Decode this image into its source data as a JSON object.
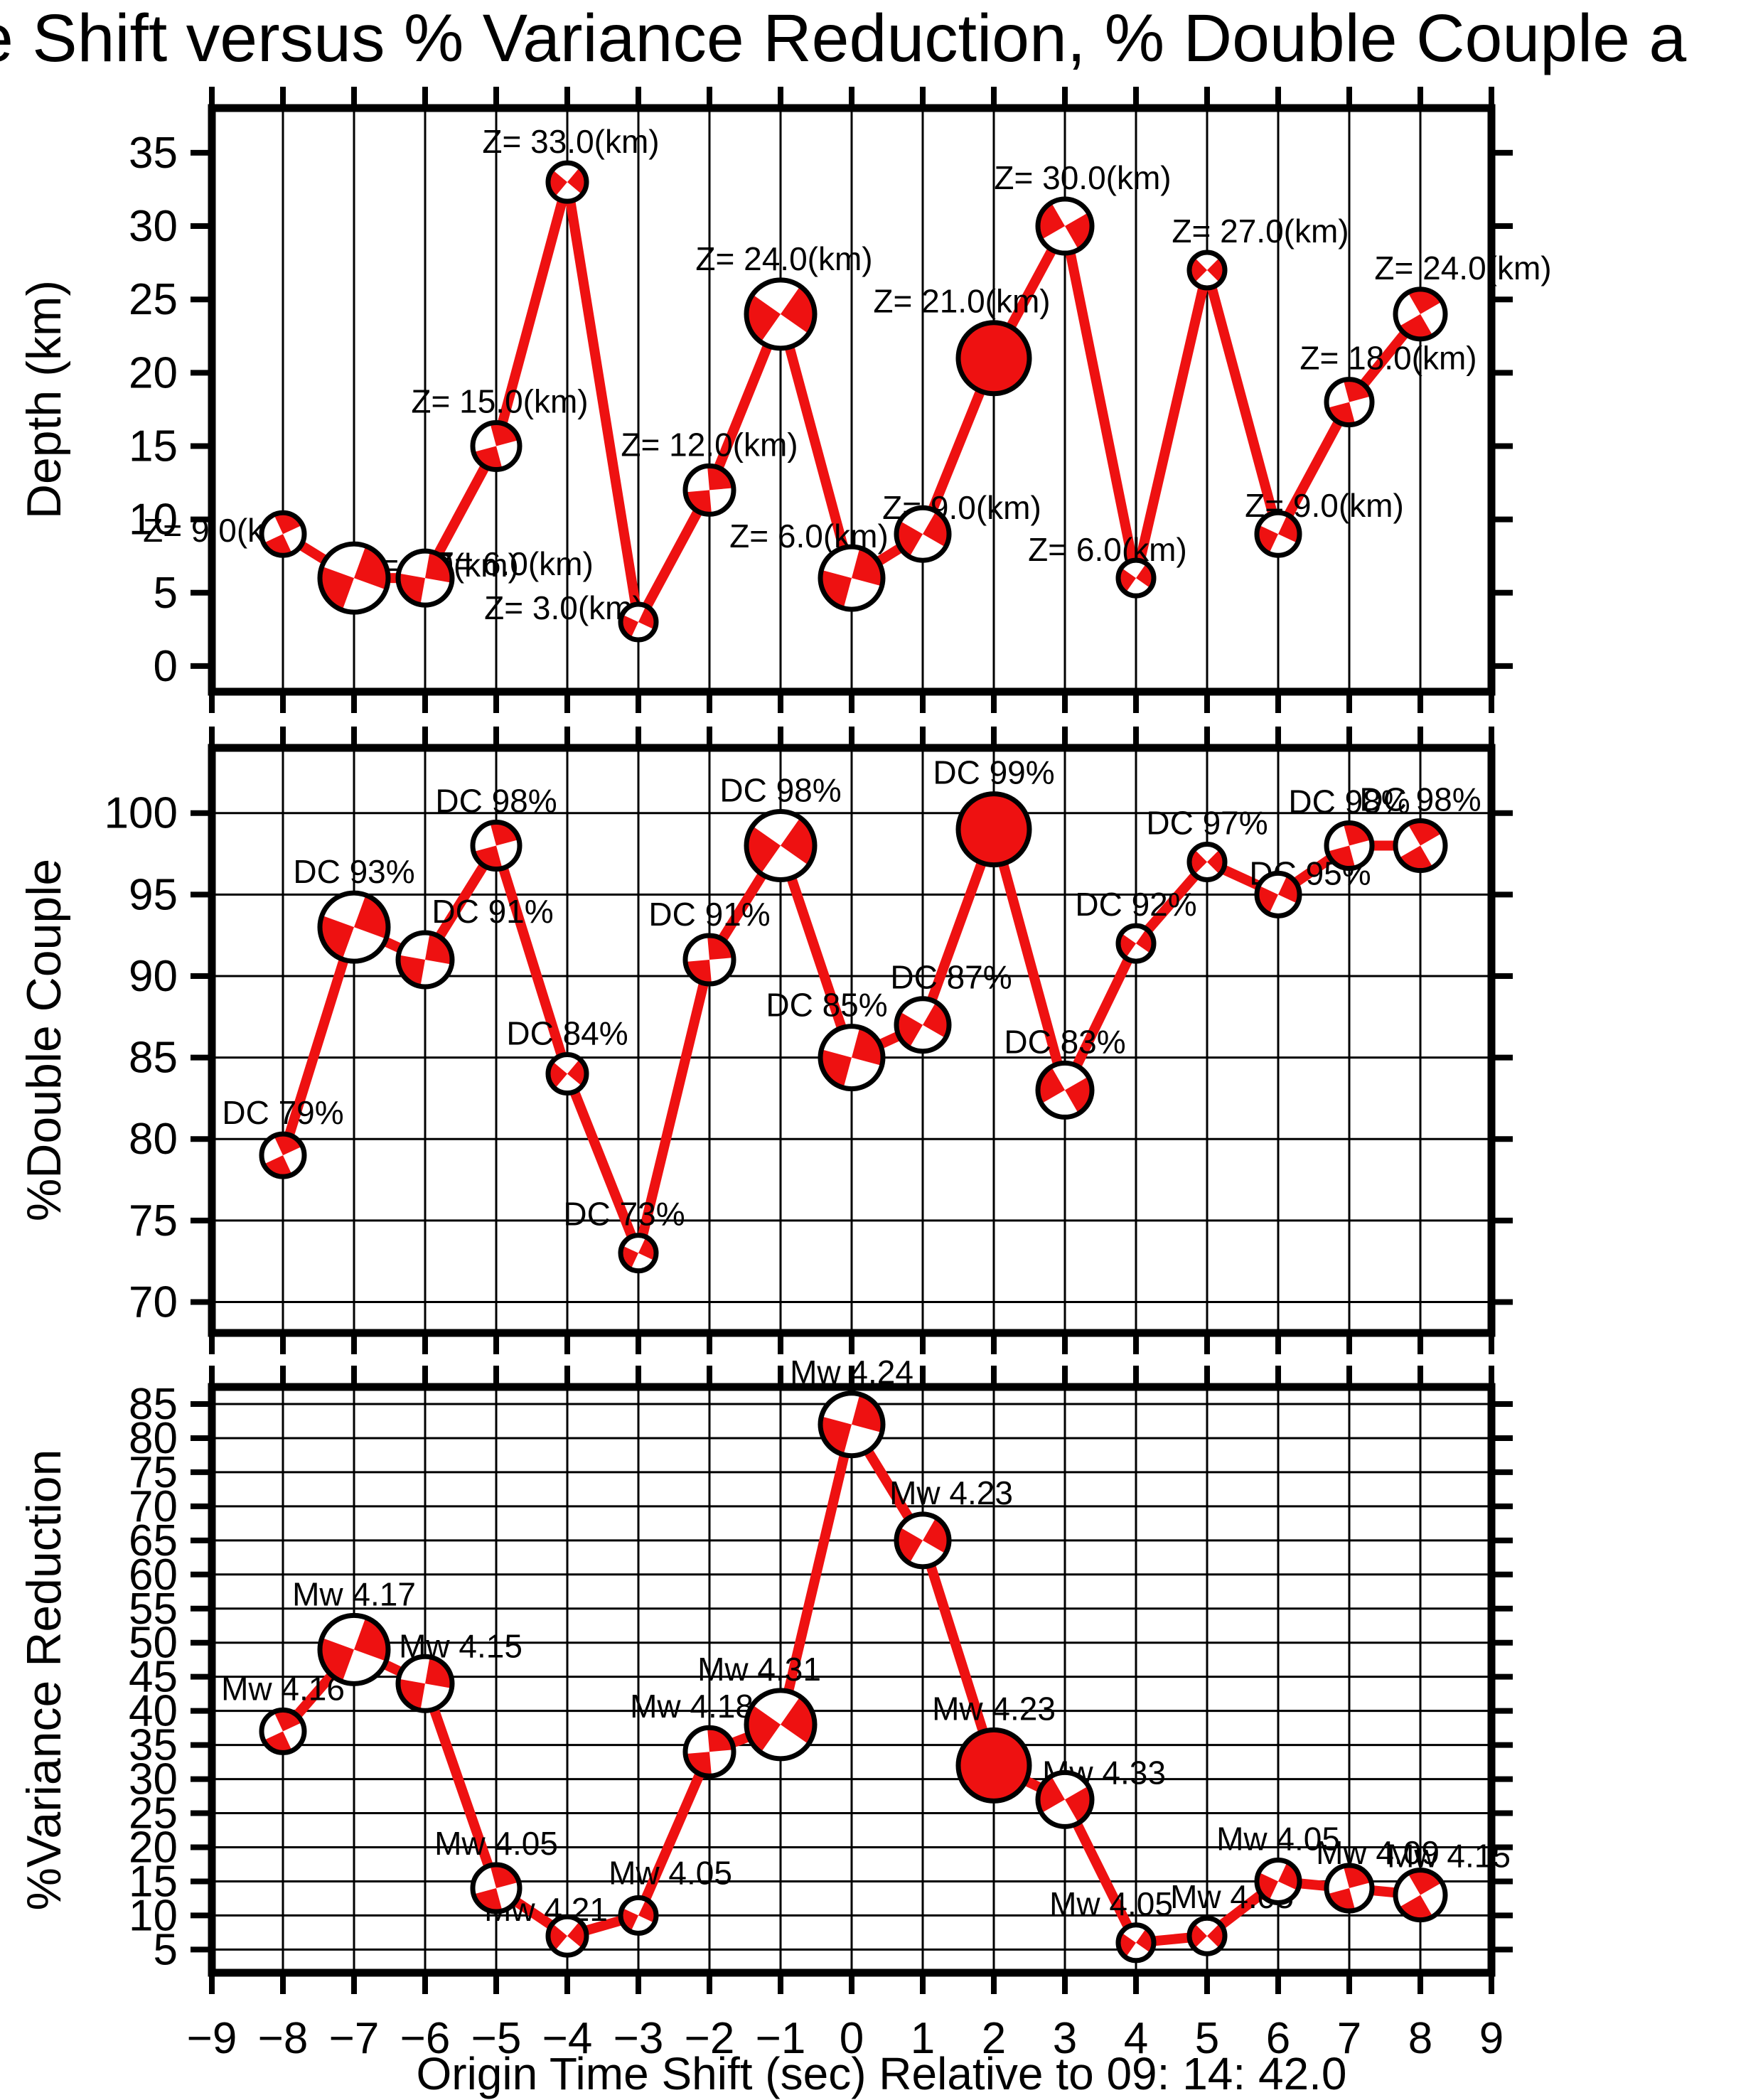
{
  "title": "e Shift versus % Variance Reduction, % Double Couple a",
  "x_axis": {
    "label": "Origin Time Shift (sec) Relative to 09: 14: 42.0",
    "ticks": [
      -9,
      -8,
      -7,
      -6,
      -5,
      -4,
      -3,
      -2,
      -1,
      0,
      1,
      2,
      3,
      4,
      5,
      6,
      7,
      8,
      9
    ],
    "range": [
      -9,
      9
    ]
  },
  "colors": {
    "line": "#ee1111",
    "ball_red": "#ee1111",
    "ball_white": "#ffffff",
    "ink": "#000000",
    "background": "#ffffff"
  },
  "markers": {
    "radius": [
      30,
      48,
      38,
      33,
      27,
      25,
      34,
      48,
      44,
      37,
      50,
      38,
      25,
      25,
      30,
      32,
      35
    ],
    "rotation_deg": [
      -25,
      20,
      10,
      -15,
      40,
      25,
      -5,
      35,
      15,
      30,
      0,
      60,
      35,
      45,
      25,
      -15,
      -30
    ],
    "solid_red_index": 10,
    "style": "double-couple focal mechanism beachball"
  },
  "chart_data": [
    {
      "type": "line",
      "panel": "depth",
      "ylabel": "Depth (km)",
      "yticks": [
        0,
        5,
        10,
        15,
        20,
        25,
        30,
        35
      ],
      "ylim": [
        -1.75,
        38.05
      ],
      "grid": {
        "vertical": true,
        "horizontal": false
      },
      "x": [
        -8,
        -7,
        -6,
        -5,
        -4,
        -3,
        -2,
        -1,
        0,
        1,
        2,
        3,
        4,
        5,
        6,
        7,
        8
      ],
      "values": [
        9,
        6,
        6,
        15,
        33,
        3,
        12,
        24,
        6,
        9,
        21,
        30,
        6,
        27,
        9,
        18,
        24
      ],
      "point_labels": [
        "Z= 9.0(km)",
        "Z= 6.0(km)",
        "Z= 6.0(km)",
        "Z= 15.0(km)",
        "Z= 33.0(km)",
        "Z= 3.0(km)",
        "Z= 12.0(km)",
        "Z= 24.0(km)",
        "Z= 6.0(km)",
        "Z= 9.0(km)",
        "Z= 21.0(km)",
        "Z= 30.0(km)",
        "Z= 6.0(km)",
        "Z= 27.0(km)",
        "Z= 9.0(km)",
        "Z= 18.0(km)",
        "Z= 24.0(km)"
      ],
      "label_dx": [
        -85,
        120,
        125,
        5,
        5,
        -105,
        0,
        5,
        -60,
        55,
        -45,
        25,
        -40,
        75,
        65,
        55,
        60
      ],
      "label_dy": [
        55,
        60,
        48,
        0,
        0,
        35,
        0,
        0,
        15,
        30,
        0,
        0,
        15,
        0,
        20,
        0,
        0
      ]
    },
    {
      "type": "line",
      "panel": "double_couple",
      "ylabel": "%Double Couple",
      "yticks": [
        70,
        75,
        80,
        85,
        90,
        95,
        100
      ],
      "ylim": [
        68.1,
        104.0
      ],
      "grid": {
        "vertical": true,
        "horizontal": true
      },
      "x": [
        -8,
        -7,
        -6,
        -5,
        -4,
        -3,
        -2,
        -1,
        0,
        1,
        2,
        3,
        4,
        5,
        6,
        7,
        8
      ],
      "values": [
        79,
        93,
        91,
        98,
        84,
        73,
        91,
        98,
        85,
        87,
        99,
        83,
        92,
        97,
        95,
        98,
        98
      ],
      "point_labels": [
        "DC 79%",
        "DC 93%",
        "DC 91%",
        "DC 98%",
        "DC 84%",
        "DC 73%",
        "DC 91%",
        "DC 98%",
        "DC 85%",
        "DC 87%",
        "DC 99%",
        "DC 83%",
        "DC 92%",
        "DC 97%",
        "DC 95%",
        "DC 98%",
        "DC 98%"
      ],
      "label_dx": [
        0,
        0,
        95,
        0,
        0,
        -20,
        0,
        0,
        -35,
        40,
        0,
        0,
        0,
        0,
        45,
        0,
        0
      ],
      "label_dy": [
        0,
        0,
        0,
        0,
        0,
        0,
        0,
        0,
        0,
        0,
        0,
        0,
        0,
        0,
        30,
        0,
        0
      ]
    },
    {
      "type": "line",
      "panel": "variance_reduction",
      "ylabel": "%Variance Reduction",
      "yticks": [
        5,
        10,
        15,
        20,
        25,
        30,
        35,
        40,
        45,
        50,
        55,
        60,
        65,
        70,
        75,
        80,
        85
      ],
      "ylim": [
        1.6,
        87.5
      ],
      "grid": {
        "vertical": true,
        "horizontal": true
      },
      "x": [
        -8,
        -7,
        -6,
        -5,
        -4,
        -3,
        -2,
        -1,
        0,
        1,
        2,
        3,
        4,
        5,
        6,
        7,
        8
      ],
      "values": [
        37,
        49,
        44,
        14,
        7,
        10,
        34,
        38,
        82,
        65,
        32,
        27,
        6,
        7,
        15,
        14,
        13
      ],
      "mw": [
        4.16,
        4.17,
        4.15,
        4.05,
        4.21,
        4.05,
        4.18,
        4.31,
        4.24,
        4.23,
        4.23,
        4.33,
        4.05,
        4.05,
        4.05,
        4.09,
        4.15
      ],
      "point_labels": [
        "Mw 4.16",
        "Mw 4.17",
        "Mw 4.15",
        "Mw 4.05",
        "Mw 4.21",
        "Mw 4.05",
        "Mw 4.18",
        "Mw 4.31",
        "Mw 4.24",
        "Mw 4.23",
        "Mw 4.23",
        "Mw 4.33",
        "Mw 4.05",
        "Mw 4.05",
        "Mw 4.05",
        "Mw 4.09",
        "Mw 4.15"
      ],
      "label_dx": [
        0,
        0,
        50,
        0,
        -30,
        45,
        -25,
        -30,
        0,
        40,
        0,
        55,
        -35,
        35,
        0,
        40,
        40
      ],
      "label_dy": [
        0,
        0,
        15,
        0,
        20,
        -5,
        0,
        0,
        0,
        0,
        0,
        30,
        0,
        0,
        0,
        12,
        10
      ]
    }
  ]
}
